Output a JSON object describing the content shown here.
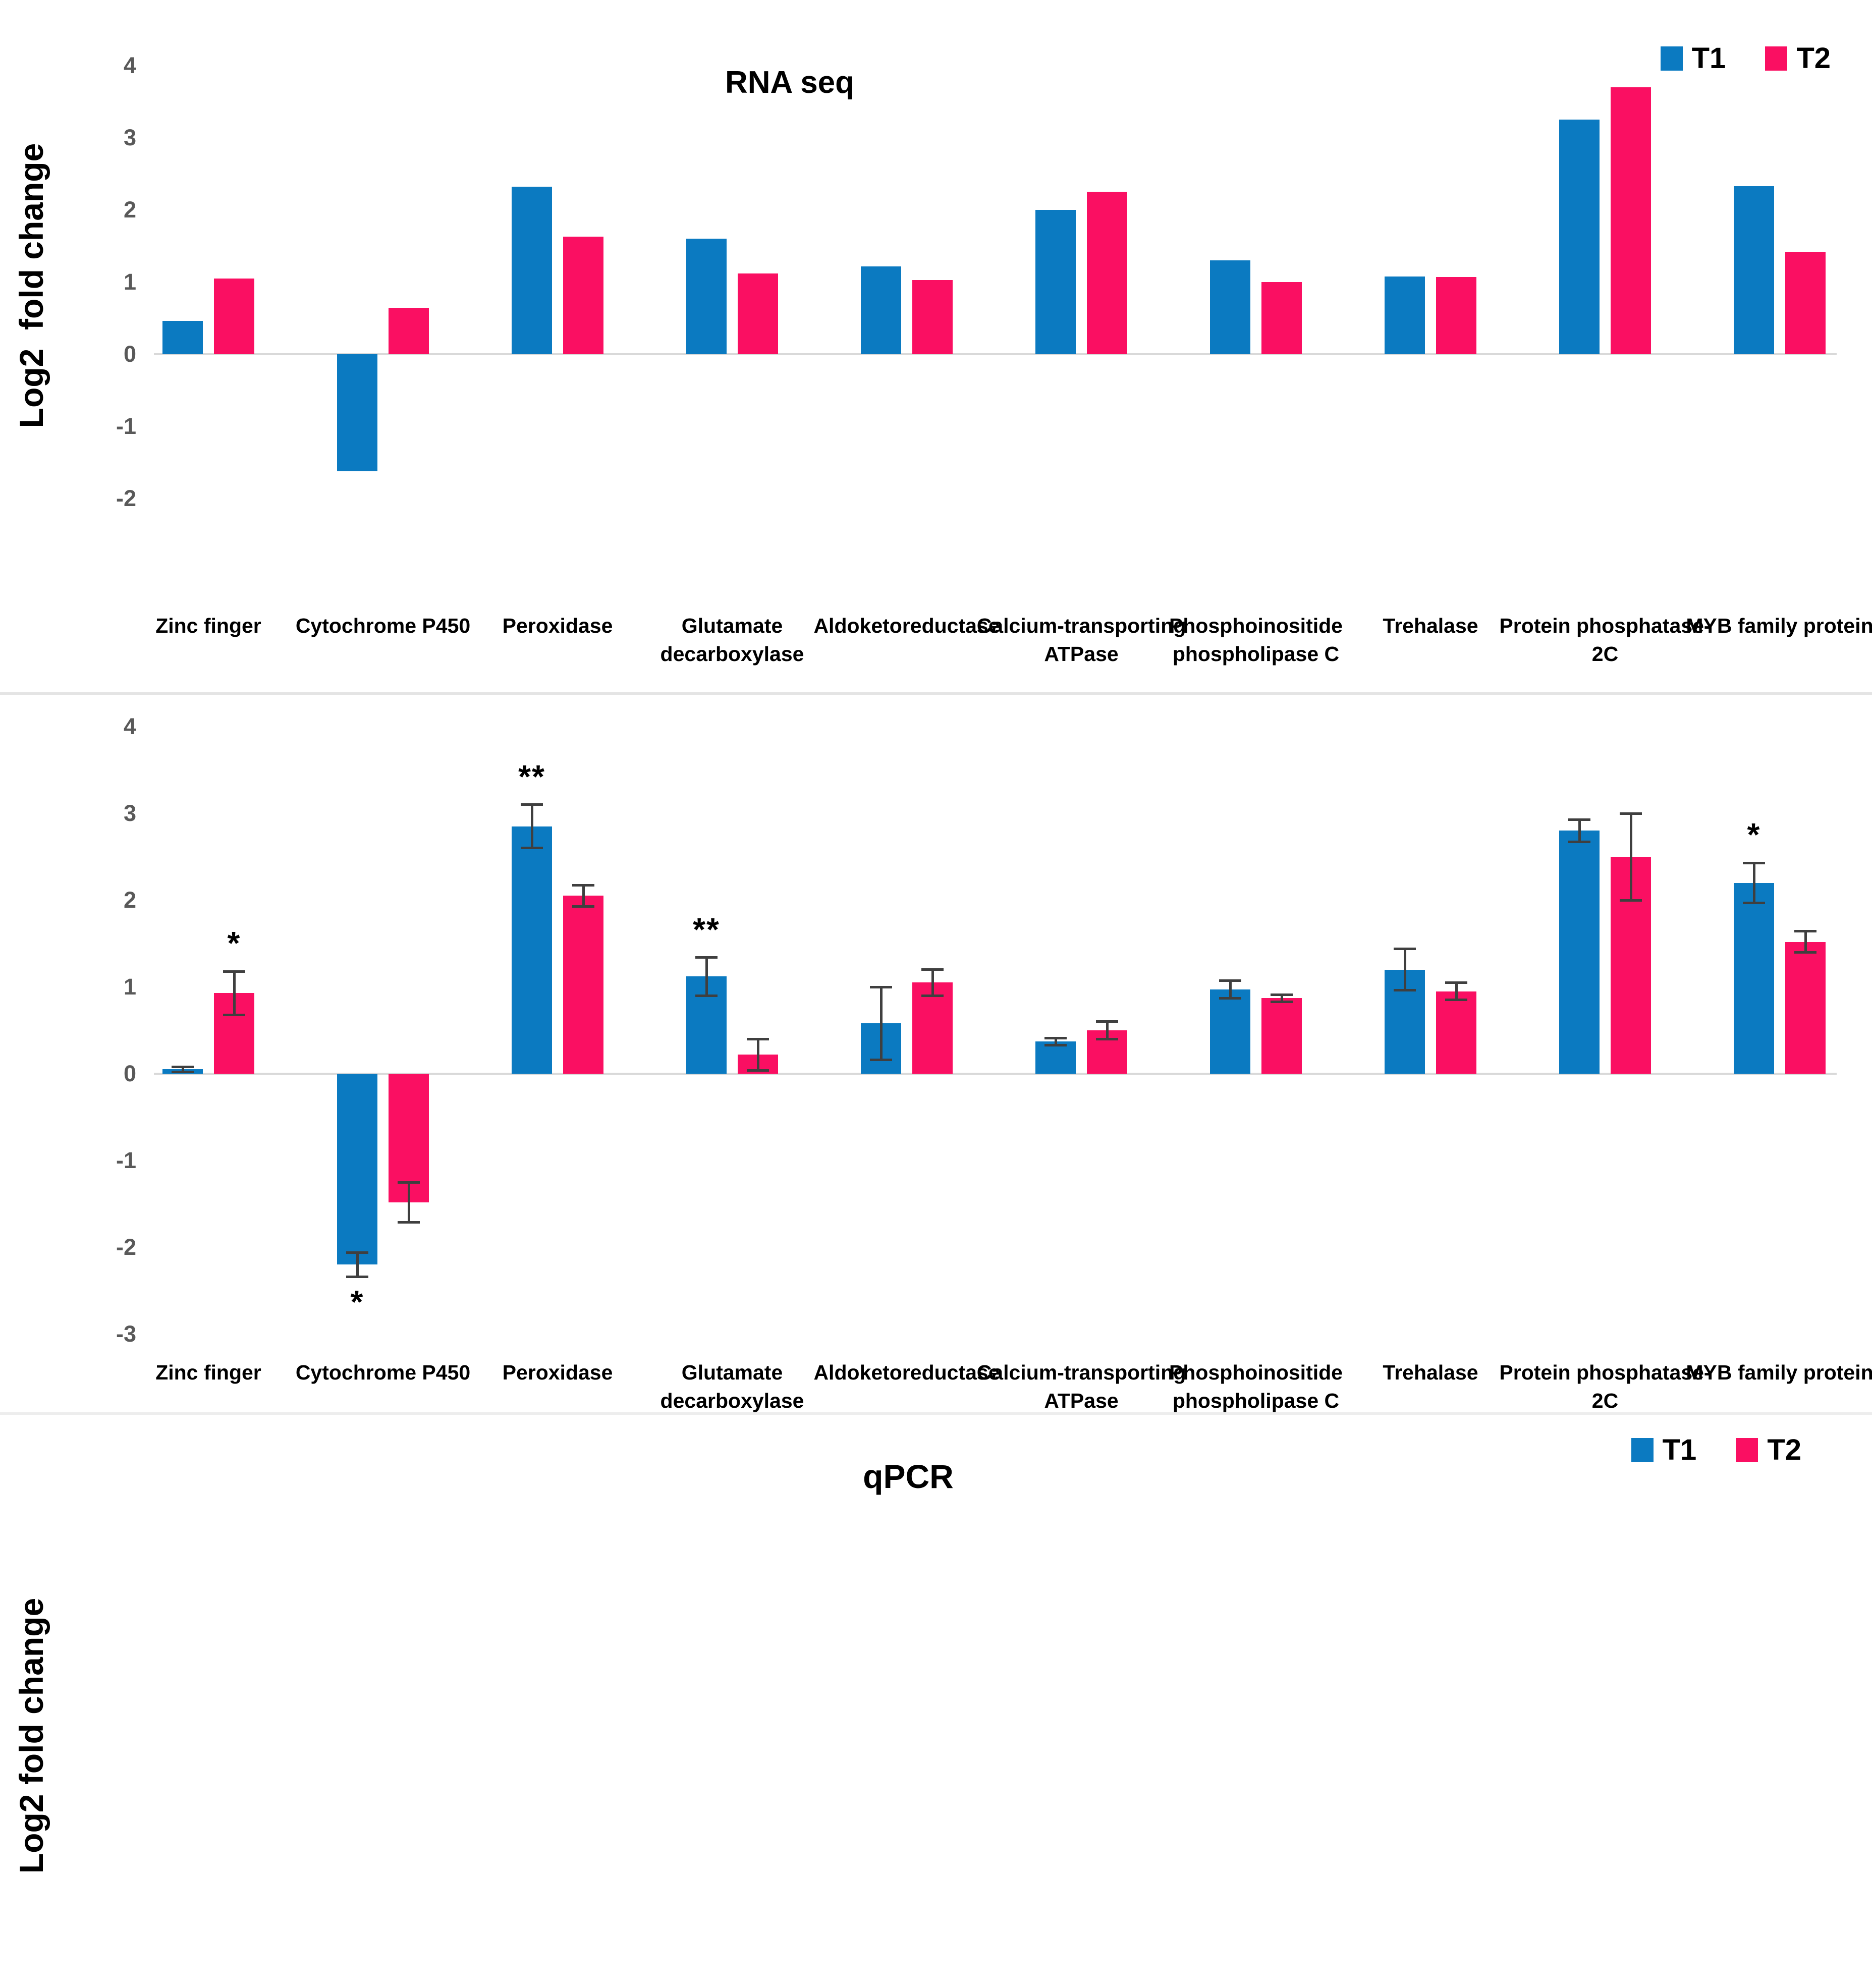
{
  "colors": {
    "t1": "#0b7ac1",
    "t2": "#fa0f62",
    "axis_line": "#d9d9d9",
    "tick_text": "#595959",
    "error_bar": "#3f3f3f",
    "divider": "#e4e4e4"
  },
  "chart_data": [
    {
      "type": "bar",
      "title": "RNA seq",
      "ylabel": "Log2  fold change",
      "xlabel": "",
      "ylim": [
        -2,
        4
      ],
      "yticks": [
        4,
        3,
        2,
        1,
        0,
        -1,
        -2
      ],
      "grid": false,
      "legend_position": "top-right",
      "legend_entries": [
        "T1",
        "T2"
      ],
      "categories": [
        "Zinc finger",
        "Cytochrome P450",
        "Peroxidase",
        "Glutamate decarboxylase",
        "Aldoketoreductase",
        "Calcium-transporting ATPase",
        "Phosphoinositide phospholipase C",
        "Trehalase",
        "Protein phosphatase-2C",
        "MYB family protein"
      ],
      "series": [
        {
          "name": "T1",
          "color": "#0b7ac1",
          "values": [
            0.46,
            -1.62,
            2.32,
            1.6,
            1.22,
            2.0,
            1.3,
            1.08,
            3.25,
            2.33
          ]
        },
        {
          "name": "T2",
          "color": "#fa0f62",
          "values": [
            1.05,
            0.64,
            1.63,
            1.12,
            1.03,
            2.25,
            1.0,
            1.07,
            3.7,
            1.42
          ]
        }
      ]
    },
    {
      "type": "bar",
      "title": "qPCR",
      "ylabel": "Log2 fold change",
      "xlabel": "",
      "ylim": [
        -3,
        4
      ],
      "yticks": [
        4,
        3,
        2,
        1,
        0,
        -1,
        -2,
        -3
      ],
      "grid": false,
      "legend_position": "top-right",
      "legend_entries": [
        "T1",
        "T2"
      ],
      "categories": [
        "Zinc finger",
        "Cytochrome P450",
        "Peroxidase",
        "Glutamate decarboxylase",
        "Aldoketoreductase",
        "Calcium-transporting ATPase",
        "Phosphoinositide phospholipase C",
        "Trehalase",
        "Protein phosphatase-2C",
        "MYB family protein"
      ],
      "series": [
        {
          "name": "T1",
          "color": "#0b7ac1",
          "values": [
            0.05,
            -2.2,
            2.85,
            1.12,
            0.58,
            0.37,
            0.97,
            1.2,
            2.8,
            2.2
          ],
          "errors": [
            0.03,
            0.14,
            0.25,
            0.22,
            0.42,
            0.04,
            0.1,
            0.24,
            0.13,
            0.23
          ],
          "sig": [
            "",
            "*",
            "**",
            "**",
            "",
            "",
            "",
            "",
            "",
            "*"
          ]
        },
        {
          "name": "T2",
          "color": "#fa0f62",
          "values": [
            0.93,
            -1.48,
            2.05,
            0.22,
            1.05,
            0.5,
            0.87,
            0.95,
            2.5,
            1.52
          ],
          "errors": [
            0.25,
            0.23,
            0.12,
            0.18,
            0.15,
            0.1,
            0.04,
            0.1,
            0.5,
            0.12
          ],
          "sig": [
            "*",
            "",
            "",
            "",
            "",
            "",
            "",
            "",
            "",
            ""
          ]
        }
      ]
    }
  ]
}
